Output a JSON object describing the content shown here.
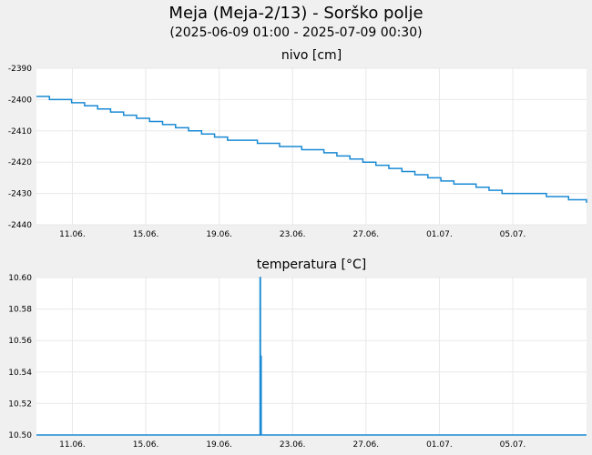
{
  "header": {
    "title": "Meja (Meja-2/13) - Sorško polje",
    "subtitle": "(2025-06-09 01:00 - 2025-07-09 00:30)"
  },
  "colors": {
    "line": "#1a8ad4",
    "grid": "#e8e8e8",
    "plot_bg": "#ffffff",
    "page_bg": "#f0f0f0"
  },
  "chart_data": [
    {
      "type": "line",
      "title": "nivo [cm]",
      "xlabel": "",
      "ylabel": "",
      "x_range": [
        "2025-06-09 01:00",
        "2025-07-09 00:30"
      ],
      "ylim": [
        -2440,
        -2390
      ],
      "y_ticks": [
        -2390,
        -2400,
        -2410,
        -2420,
        -2430,
        -2440
      ],
      "x_ticks": [
        {
          "date": "2025-06-11",
          "label": "11.06."
        },
        {
          "date": "2025-06-15",
          "label": "15.06."
        },
        {
          "date": "2025-06-19",
          "label": "19.06."
        },
        {
          "date": "2025-06-23",
          "label": "23.06."
        },
        {
          "date": "2025-06-27",
          "label": "27.06."
        },
        {
          "date": "2025-07-01",
          "label": "01.07."
        },
        {
          "date": "2025-07-05",
          "label": "05.07."
        }
      ],
      "grid": true,
      "series": [
        {
          "x": [
            "2025-06-09 01:00",
            "2025-06-09 18:00",
            "2025-06-10 23:00",
            "2025-06-11 16:00",
            "2025-06-12 09:00",
            "2025-06-13 02:00",
            "2025-06-13 19:00",
            "2025-06-14 12:00",
            "2025-06-15 05:00",
            "2025-06-15 22:00",
            "2025-06-16 15:00",
            "2025-06-17 08:00",
            "2025-06-18 01:00",
            "2025-06-18 18:00",
            "2025-06-19 11:00",
            "2025-06-21 02:00",
            "2025-06-22 07:00",
            "2025-06-23 12:00",
            "2025-06-24 17:00",
            "2025-06-25 10:00",
            "2025-06-26 03:00",
            "2025-06-26 20:00",
            "2025-06-27 13:00",
            "2025-06-28 06:00",
            "2025-06-28 23:00",
            "2025-06-29 16:00",
            "2025-06-30 09:00",
            "2025-07-01 02:00",
            "2025-07-01 19:00",
            "2025-07-03 00:00",
            "2025-07-03 17:00",
            "2025-07-04 10:00",
            "2025-07-05 03:00",
            "2025-07-06 20:00",
            "2025-07-08 01:00",
            "2025-07-09 00:00",
            "2025-07-09 00:30"
          ],
          "values": [
            -2399,
            -2400,
            -2401,
            -2402,
            -2403,
            -2404,
            -2405,
            -2406,
            -2407,
            -2408,
            -2409,
            -2410,
            -2411,
            -2412,
            -2413,
            -2414,
            -2415,
            -2416,
            -2417,
            -2418,
            -2419,
            -2420,
            -2421,
            -2422,
            -2423,
            -2424,
            -2425,
            -2426,
            -2427,
            -2428,
            -2429,
            -2430,
            -2430,
            -2431,
            -2432,
            -2432,
            -2433
          ]
        }
      ]
    },
    {
      "type": "line",
      "title": "temperatura [°C]",
      "xlabel": "",
      "ylabel": "",
      "x_range": [
        "2025-06-09 01:00",
        "2025-07-09 00:30"
      ],
      "ylim": [
        10.5,
        10.6
      ],
      "y_ticks": [
        10.6,
        10.58,
        10.56,
        10.54,
        10.52,
        10.5
      ],
      "x_ticks": [
        {
          "date": "2025-06-11",
          "label": "11.06."
        },
        {
          "date": "2025-06-15",
          "label": "15.06."
        },
        {
          "date": "2025-06-19",
          "label": "19.06."
        },
        {
          "date": "2025-06-23",
          "label": "23.06."
        },
        {
          "date": "2025-06-27",
          "label": "27.06."
        },
        {
          "date": "2025-07-01",
          "label": "01.07."
        },
        {
          "date": "2025-07-05",
          "label": "05.07."
        }
      ],
      "grid": true,
      "series": [
        {
          "x": [
            "2025-06-09 01:00",
            "2025-06-21 05:00",
            "2025-06-21 05:30",
            "2025-06-21 06:00",
            "2025-06-21 06:30",
            "2025-06-21 07:00",
            "2025-07-09 00:30"
          ],
          "values": [
            10.5,
            10.5,
            10.6,
            10.5,
            10.55,
            10.5,
            10.5
          ]
        }
      ]
    }
  ]
}
